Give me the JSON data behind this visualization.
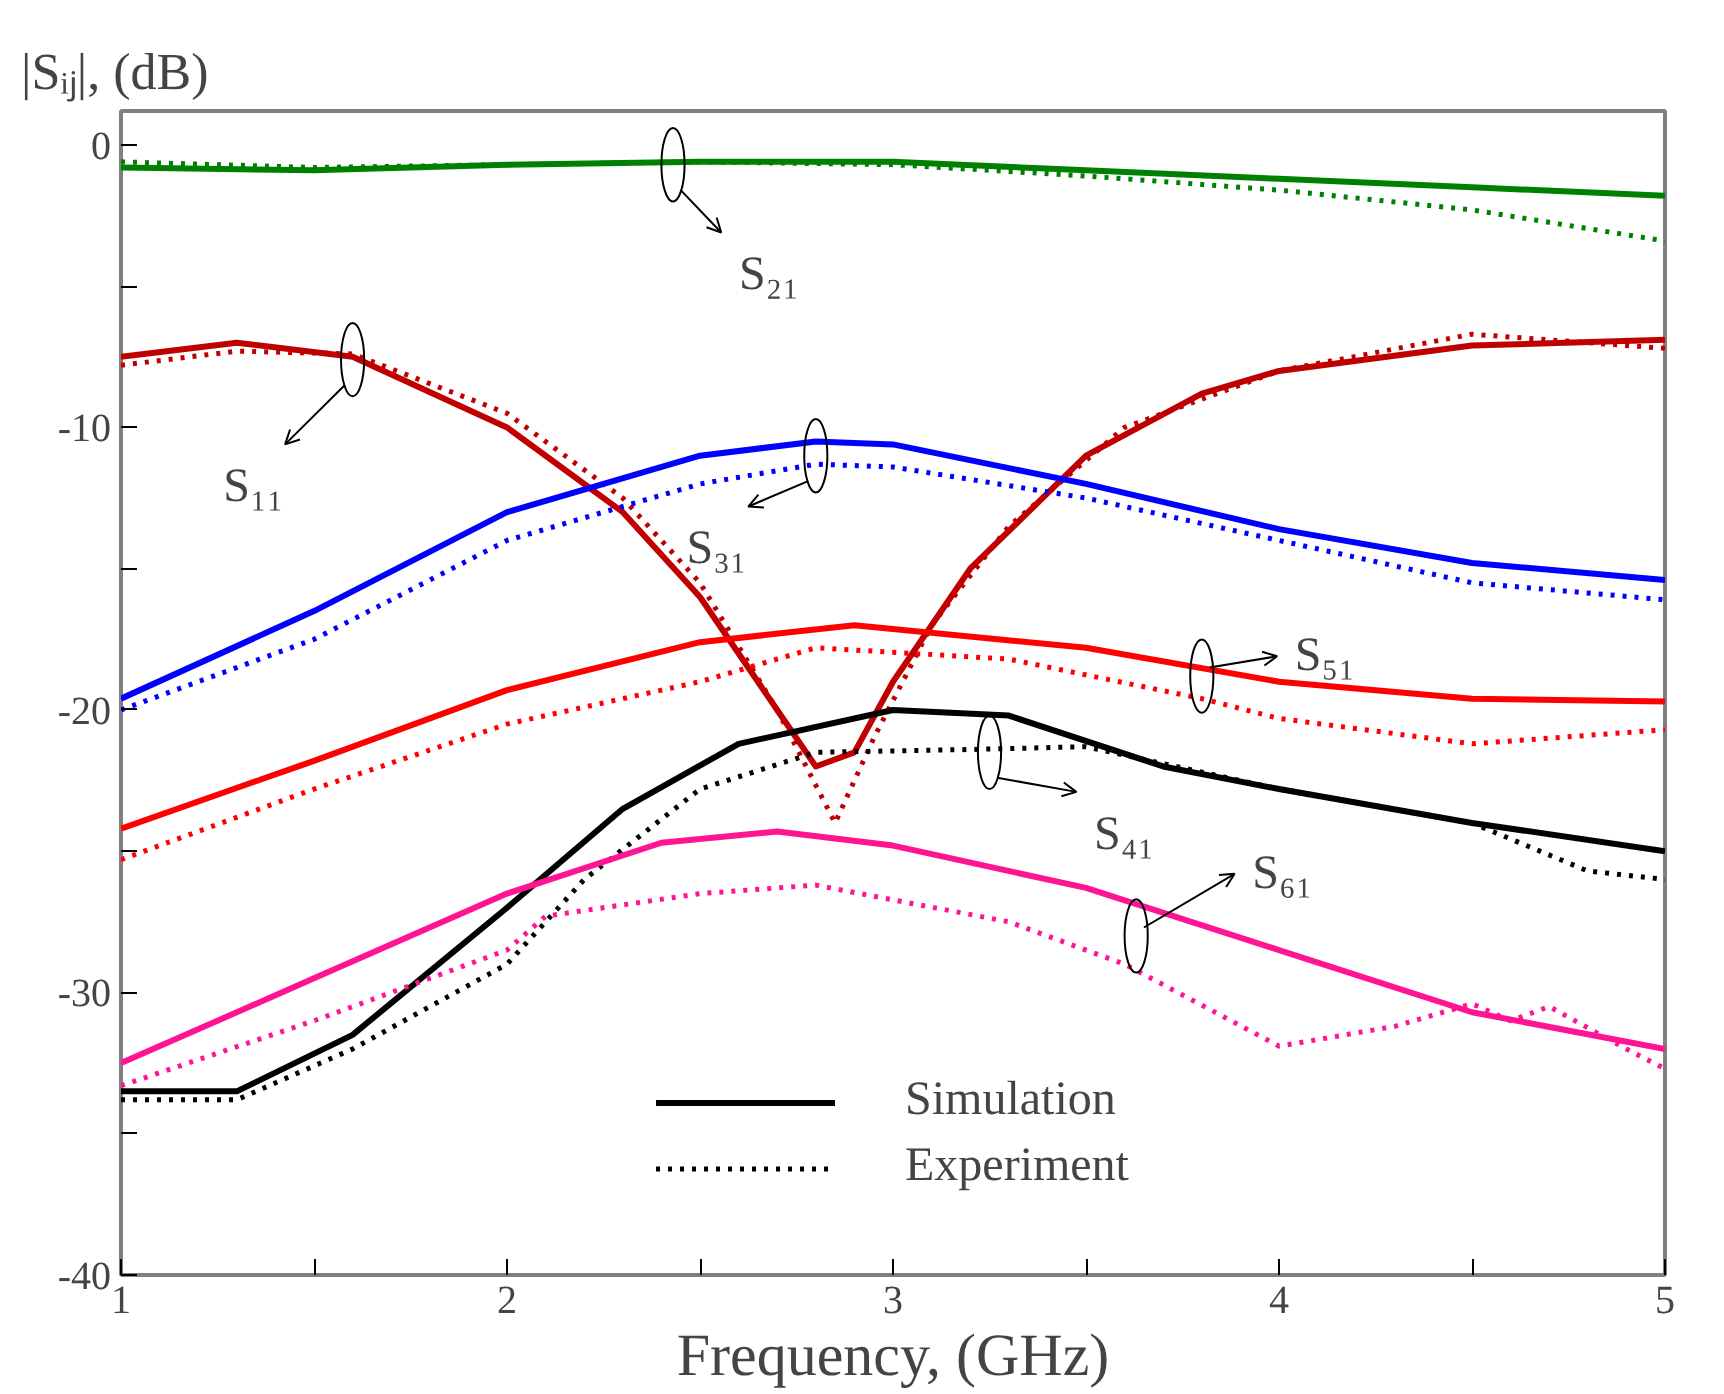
{
  "chart_data": {
    "type": "line",
    "ylabel": "|Sᵢⱼ|, (dB)",
    "xlabel": "Frequency, (GHz)",
    "xlim": [
      1,
      5
    ],
    "xticks": [
      1,
      {
        "value": 1.5,
        "label": null
      },
      2,
      {
        "value": 2.5,
        "label": null
      },
      3,
      {
        "value": 3.5,
        "label": null
      },
      4,
      {
        "value": 4.5,
        "label": null
      },
      5
    ],
    "ylim": [
      -40,
      1.2
    ],
    "yticks": [
      -40,
      {
        "value": -35,
        "label": null
      },
      -30,
      {
        "value": -25,
        "label": null
      },
      -20,
      {
        "value": -15,
        "label": null
      },
      -10,
      {
        "value": -5,
        "label": null
      },
      0
    ],
    "grid": false,
    "legend": "bottom",
    "series": [
      {
        "color": "#008000",
        "line_style": "solid",
        "x": [
          1,
          1.5,
          2,
          2.5,
          3,
          3.5,
          4,
          4.5,
          5
        ],
        "values": [
          -0.8,
          -0.9,
          -0.7,
          -0.6,
          -0.6,
          -0.9,
          -1.2,
          -1.5,
          -1.8
        ]
      },
      {
        "color": "#008000",
        "line_style": "dotted",
        "x": [
          1,
          1.5,
          2,
          2.5,
          3,
          3.5,
          4,
          4.5,
          5
        ],
        "values": [
          -0.6,
          -0.8,
          -0.7,
          -0.6,
          -0.7,
          -1.1,
          -1.6,
          -2.3,
          -3.4
        ]
      },
      {
        "color": "#c00000",
        "line_style": "solid",
        "x": [
          1,
          1.3,
          1.6,
          2,
          2.3,
          2.5,
          2.7,
          2.8,
          2.9,
          3.0,
          3.2,
          3.5,
          3.8,
          4,
          4.5,
          5
        ],
        "values": [
          -7.5,
          -7.0,
          -7.5,
          -10,
          -13,
          -16,
          -20,
          -22,
          -21.5,
          -19,
          -15,
          -11,
          -8.8,
          -8,
          -7.1,
          -6.9
        ]
      },
      {
        "color": "#c00000",
        "line_style": "dotted",
        "x": [
          1,
          1.3,
          1.6,
          2,
          2.3,
          2.5,
          2.7,
          2.85,
          2.95,
          3.1,
          3.3,
          3.6,
          4,
          4.5,
          5
        ],
        "values": [
          -7.8,
          -7.3,
          -7.4,
          -9.5,
          -12.5,
          -15.5,
          -20,
          -24,
          -21,
          -17,
          -13.5,
          -10,
          -8,
          -6.7,
          -7.2
        ]
      },
      {
        "color": "#0000ff",
        "line_style": "solid",
        "x": [
          1,
          1.5,
          2,
          2.5,
          2.8,
          3,
          3.5,
          4,
          4.5,
          5
        ],
        "values": [
          -19.6,
          -16.5,
          -13,
          -11,
          -10.5,
          -10.6,
          -12,
          -13.6,
          -14.8,
          -15.4
        ]
      },
      {
        "color": "#0000ff",
        "line_style": "dotted",
        "x": [
          1,
          1.5,
          2,
          2.5,
          2.8,
          3,
          3.5,
          4,
          4.5,
          5
        ],
        "values": [
          -20,
          -17.5,
          -14,
          -12,
          -11.3,
          -11.4,
          -12.5,
          -14,
          -15.5,
          -16.1
        ]
      },
      {
        "color": "#ff0000",
        "line_style": "solid",
        "x": [
          1,
          1.5,
          2,
          2.5,
          2.9,
          3.5,
          4,
          4.5,
          5
        ],
        "values": [
          -24.2,
          -21.8,
          -19.3,
          -17.6,
          -17.0,
          -17.8,
          -19.0,
          -19.6,
          -19.7
        ]
      },
      {
        "color": "#ff0000",
        "line_style": "dotted",
        "x": [
          1,
          1.5,
          2,
          2.5,
          2.8,
          3.3,
          3.8,
          4,
          4.5,
          5
        ],
        "values": [
          -25.3,
          -22.8,
          -20.5,
          -19,
          -17.8,
          -18.2,
          -19.6,
          -20.3,
          -21.2,
          -20.7
        ]
      },
      {
        "name": "Simulation",
        "color": "#000000",
        "line_style": "solid",
        "x": [
          1,
          1.3,
          1.6,
          2,
          2.3,
          2.6,
          3,
          3.3,
          3.7,
          4,
          4.5,
          5
        ],
        "values": [
          -33.5,
          -33.5,
          -31.5,
          -27,
          -23.5,
          -21.2,
          -20,
          -20.2,
          -22,
          -22.8,
          -24,
          -25
        ]
      },
      {
        "name": "Experiment",
        "color": "#000000",
        "line_style": "dotted",
        "x": [
          1,
          1.3,
          1.6,
          2,
          2.2,
          2.5,
          2.8,
          3.2,
          3.5,
          4,
          4.5,
          4.8,
          5
        ],
        "values": [
          -33.8,
          -33.8,
          -32,
          -29,
          -26,
          -22.8,
          -21.5,
          -21.4,
          -21.3,
          -22.8,
          -24,
          -25.7,
          -26
        ]
      },
      {
        "color": "#ff1493",
        "line_style": "solid",
        "x": [
          1,
          1.5,
          2,
          2.4,
          2.7,
          3,
          3.5,
          4,
          4.5,
          5
        ],
        "values": [
          -32.5,
          -29.5,
          -26.5,
          -24.7,
          -24.3,
          -24.8,
          -26.3,
          -28.5,
          -30.7,
          -32
        ]
      },
      {
        "color": "#ff1493",
        "line_style": "dotted",
        "x": [
          1,
          1.5,
          2,
          2.1,
          2.5,
          2.8,
          3.3,
          3.6,
          4,
          4.3,
          4.5,
          4.6,
          4.7,
          4.9,
          5
        ],
        "values": [
          -33.3,
          -31,
          -28.5,
          -27.3,
          -26.5,
          -26.2,
          -27.5,
          -29,
          -31.9,
          -31.2,
          -30.4,
          -31.0,
          -30.5,
          -32,
          -32.7
        ]
      }
    ],
    "annotations": [
      {
        "text": "S₂₁",
        "x": 2.43,
        "y": -0.7
      },
      {
        "text": "S₁₁",
        "x": 1.6,
        "y": -7.6
      },
      {
        "text": "S₃₁",
        "x": 2.8,
        "y": -11
      },
      {
        "text": "S₅₁",
        "x": 3.8,
        "y": -18.8
      },
      {
        "text": "S₄₁",
        "x": 3.25,
        "y": -21.5
      },
      {
        "text": "S₆₁",
        "x": 3.63,
        "y": -28
      }
    ]
  }
}
